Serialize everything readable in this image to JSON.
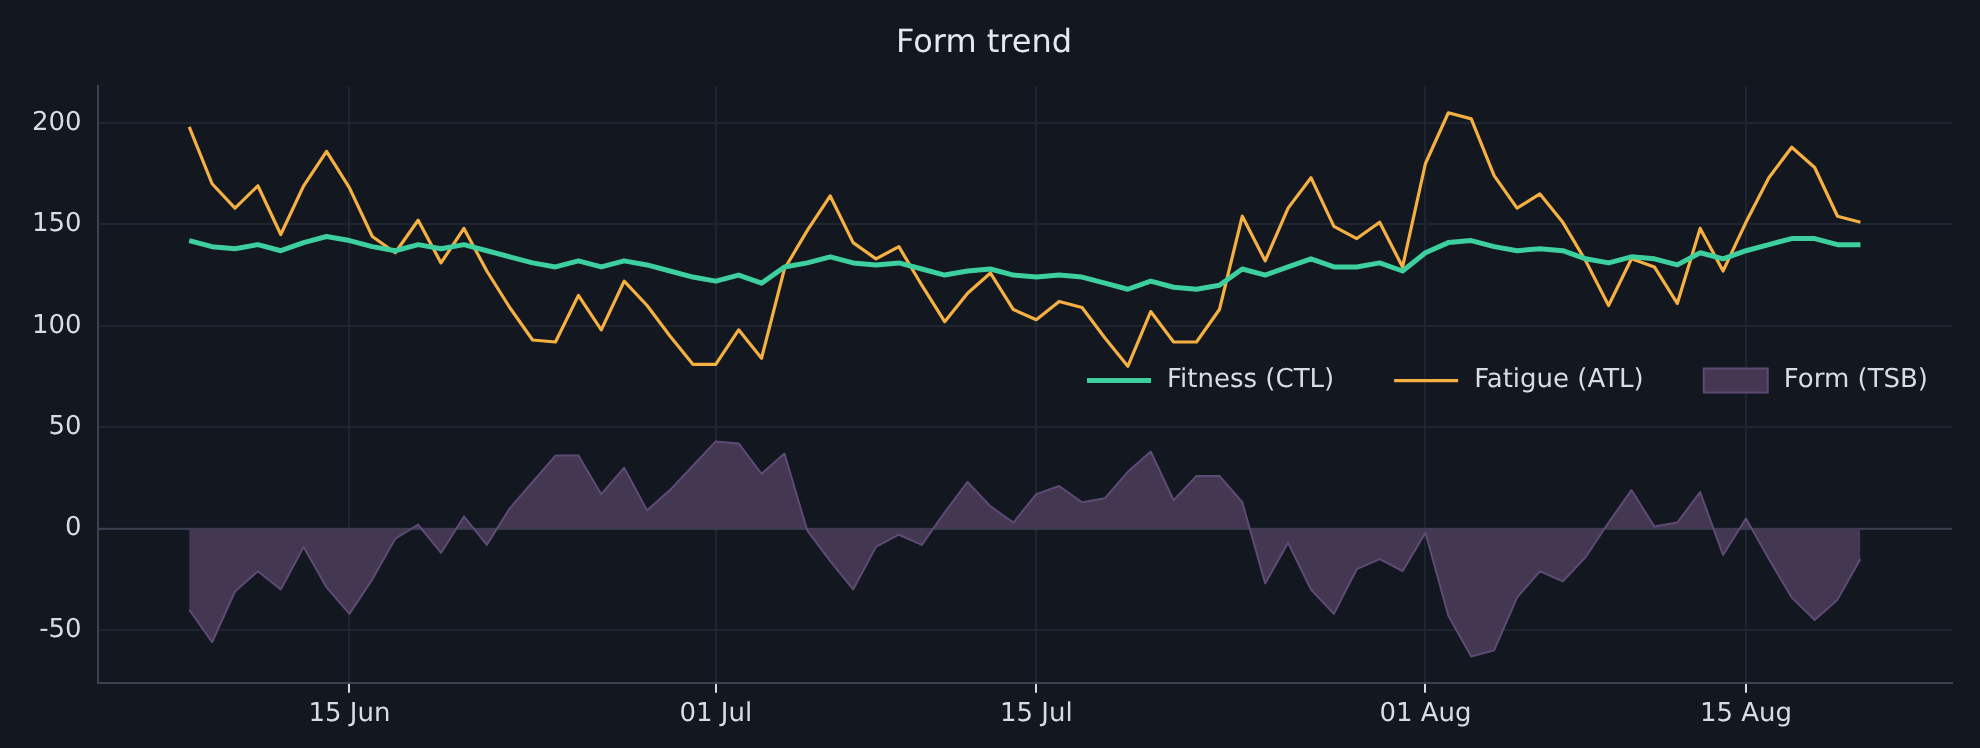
{
  "chart_data": {
    "type": "line",
    "title": "Form trend",
    "x": [
      "--06-08",
      "--06-09",
      "--06-10",
      "--06-11",
      "--06-12",
      "--06-13",
      "--06-14",
      "--06-15",
      "--06-16",
      "--06-17",
      "--06-18",
      "--06-19",
      "--06-20",
      "--06-21",
      "--06-22",
      "--06-23",
      "--06-24",
      "--06-25",
      "--06-26",
      "--06-27",
      "--06-28",
      "--06-29",
      "--06-30",
      "--07-01",
      "--07-02",
      "--07-03",
      "--07-04",
      "--07-05",
      "--07-06",
      "--07-07",
      "--07-08",
      "--07-09",
      "--07-10",
      "--07-11",
      "--07-12",
      "--07-13",
      "--07-14",
      "--07-15",
      "--07-16",
      "--07-17",
      "--07-18",
      "--07-19",
      "--07-20",
      "--07-21",
      "--07-22",
      "--07-23",
      "--07-24",
      "--07-25",
      "--07-26",
      "--07-27",
      "--07-28",
      "--07-29",
      "--07-30",
      "--07-31",
      "--08-01",
      "--08-02",
      "--08-03",
      "--08-04",
      "--08-05",
      "--08-06",
      "--08-07",
      "--08-08",
      "--08-09",
      "--08-10",
      "--08-11",
      "--08-12",
      "--08-13",
      "--08-14",
      "--08-15",
      "--08-16",
      "--08-17",
      "--08-18",
      "--08-19",
      "--08-20"
    ],
    "series": [
      {
        "name": "Fitness (CTL)",
        "color": "#3ecf9e",
        "values": [
          142,
          139,
          138,
          140,
          137,
          141,
          144,
          142,
          139,
          137,
          140,
          138,
          140,
          137,
          134,
          131,
          129,
          132,
          129,
          132,
          130,
          127,
          124,
          122,
          125,
          121,
          129,
          131,
          134,
          131,
          130,
          131,
          128,
          125,
          127,
          128,
          125,
          124,
          125,
          124,
          121,
          118,
          122,
          119,
          118,
          120,
          128,
          125,
          129,
          133,
          129,
          129,
          131,
          127,
          136,
          141,
          142,
          139,
          137,
          138,
          137,
          133,
          131,
          134,
          133,
          130,
          136,
          133,
          137,
          140,
          143,
          143,
          140,
          140
        ]
      },
      {
        "name": "Fatigue (ATL)",
        "color": "#f5b041",
        "values": [
          198,
          170,
          158,
          169,
          145,
          169,
          186,
          168,
          144,
          136,
          152,
          131,
          148,
          127,
          109,
          93,
          92,
          115,
          98,
          122,
          110,
          95,
          81,
          81,
          98,
          84,
          128,
          147,
          164,
          141,
          133,
          139,
          120,
          102,
          116,
          126,
          108,
          103,
          112,
          109,
          94,
          80,
          107,
          92,
          92,
          108,
          154,
          132,
          158,
          173,
          149,
          143,
          151,
          129,
          180,
          205,
          202,
          174,
          158,
          165,
          151,
          132,
          110,
          133,
          129,
          111,
          148,
          127,
          151,
          173,
          188,
          178,
          154,
          151
        ]
      },
      {
        "name": "Form (TSB)",
        "type": "area",
        "color": "#433752",
        "values": [
          -40,
          -56,
          -31,
          -21,
          -30,
          -9,
          -29,
          -42,
          -25,
          -5,
          2,
          -12,
          6,
          -8,
          10,
          23,
          36,
          36,
          17,
          30,
          9,
          19,
          31,
          43,
          42,
          27,
          37,
          -1,
          -16,
          -30,
          -9,
          -3,
          -8,
          8,
          23,
          11,
          3,
          17,
          21,
          13,
          15,
          28,
          38,
          14,
          26,
          26,
          13,
          -27,
          -7,
          -30,
          -42,
          -20,
          -15,
          -21,
          -2,
          -43,
          -63,
          -60,
          -34,
          -21,
          -26,
          -14,
          3,
          19,
          1,
          3,
          18,
          -13,
          5,
          -15,
          -34,
          -45,
          -35,
          -15
        ]
      }
    ],
    "xlim": [
      "--06-04",
      "--08-24"
    ],
    "xticks": [
      {
        "value": "--06-15",
        "label": "15 Jun"
      },
      {
        "value": "--07-01",
        "label": "01 Jul"
      },
      {
        "value": "--07-15",
        "label": "15 Jul"
      },
      {
        "value": "--08-01",
        "label": "01 Aug"
      },
      {
        "value": "--08-15",
        "label": "15 Aug"
      }
    ],
    "ylim": [
      -76,
      218
    ],
    "yticks": [
      -50,
      0,
      50,
      100,
      150,
      200
    ],
    "ref_lines": [
      {
        "axis": "y",
        "value": 0,
        "color": "#3a4150"
      }
    ],
    "grid": true,
    "legend": "right",
    "marker": "none",
    "line_style": "solid"
  }
}
